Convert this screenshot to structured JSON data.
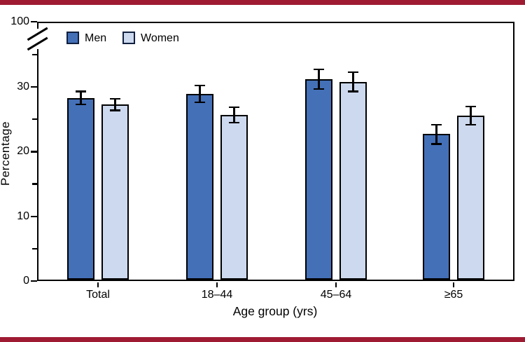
{
  "figure": {
    "style": "MMWR QuickStats",
    "rule_color": "#9E1B32",
    "background": "#FFFFFF",
    "axis_color": "#000000"
  },
  "chart_data": {
    "type": "bar",
    "title": "",
    "xlabel": "Age group (yrs)",
    "ylabel": "Percentage",
    "categories": [
      "Total",
      "18–44",
      "45–64",
      "≥65"
    ],
    "series": [
      {
        "name": "Men",
        "color": "#4470B8",
        "border": "#000000",
        "values": [
          28.3,
          28.9,
          31.2,
          22.7
        ],
        "errors": [
          1.0,
          1.3,
          1.5,
          1.5
        ]
      },
      {
        "name": "Women",
        "color": "#CDD9EE",
        "border": "#000000",
        "values": [
          27.3,
          25.7,
          30.8,
          25.6
        ],
        "errors": [
          0.9,
          1.2,
          1.5,
          1.4
        ]
      }
    ],
    "y_axis": {
      "labeled_ticks": [
        0,
        10,
        20,
        30
      ],
      "labeled_tick_text": [
        "0",
        "10",
        "20",
        "30"
      ],
      "minor_ticks": [
        5,
        15,
        25,
        35
      ],
      "axis_break": true,
      "top_label": "100",
      "ylim": [
        0,
        100
      ]
    },
    "legend": {
      "position": "top-left-inside",
      "entries": [
        "Men",
        "Women"
      ]
    },
    "grid": false
  }
}
